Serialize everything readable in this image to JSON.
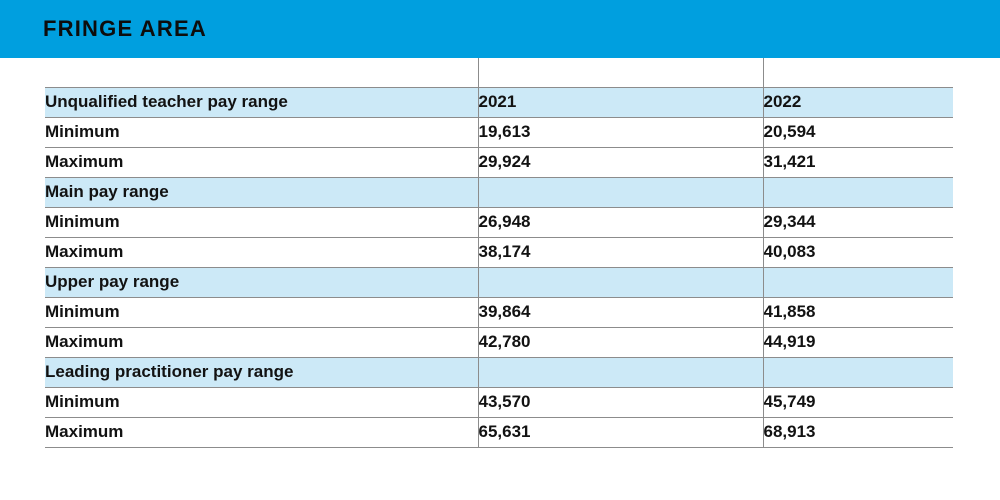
{
  "header": {
    "title": "FRINGE AREA"
  },
  "colors": {
    "top_bar": "#009FDF",
    "highlight_row": "#CCE9F7",
    "border": "#8C8C8C",
    "text": "#121212"
  },
  "table": {
    "rows": [
      {
        "type": "header",
        "cells": [
          "Unqualified teacher pay range",
          "2021",
          "2022"
        ]
      },
      {
        "type": "data",
        "cells": [
          "Minimum",
          "19,613",
          "20,594"
        ]
      },
      {
        "type": "data",
        "cells": [
          "Maximum",
          "29,924",
          "31,421"
        ]
      },
      {
        "type": "section",
        "cells": [
          "Main pay range",
          "",
          ""
        ]
      },
      {
        "type": "data",
        "cells": [
          "Minimum",
          "26,948",
          "29,344"
        ]
      },
      {
        "type": "data",
        "cells": [
          "Maximum",
          "38,174",
          "40,083"
        ]
      },
      {
        "type": "section",
        "cells": [
          "Upper pay range",
          "",
          ""
        ]
      },
      {
        "type": "data",
        "cells": [
          "Minimum",
          "39,864",
          "41,858"
        ]
      },
      {
        "type": "data",
        "cells": [
          "Maximum",
          "42,780",
          "44,919"
        ]
      },
      {
        "type": "section",
        "cells": [
          "Leading practitioner pay range",
          "",
          ""
        ]
      },
      {
        "type": "data",
        "cells": [
          "Minimum",
          "43,570",
          "45,749"
        ]
      },
      {
        "type": "data",
        "cells": [
          "Maximum",
          "65,631",
          "68,913"
        ]
      }
    ]
  }
}
